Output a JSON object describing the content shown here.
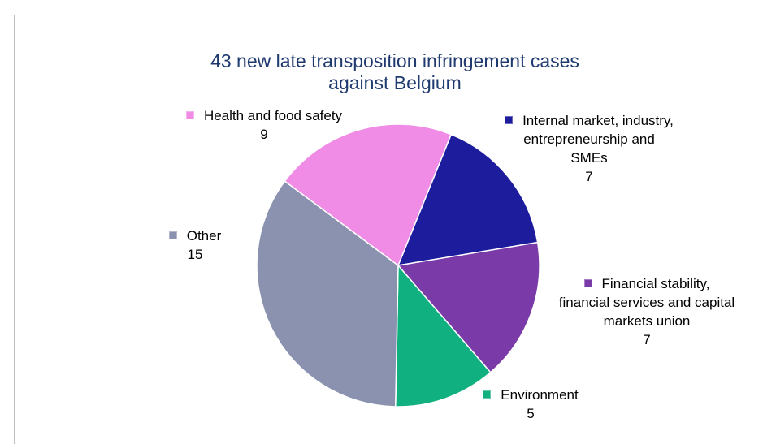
{
  "chart_data": {
    "type": "pie",
    "title": "43 new late transposition infringement cases against Belgium",
    "categories": [
      "Internal market, industry, entrepreneurship and SMEs",
      "Financial stability, financial services and capital markets union",
      "Environment",
      "Other",
      "Health and food safety"
    ],
    "values": [
      7,
      7,
      5,
      15,
      9
    ],
    "colors": [
      "#1c1c9c",
      "#7a3aa8",
      "#10b080",
      "#8a92b0",
      "#f08ce6"
    ]
  }
}
